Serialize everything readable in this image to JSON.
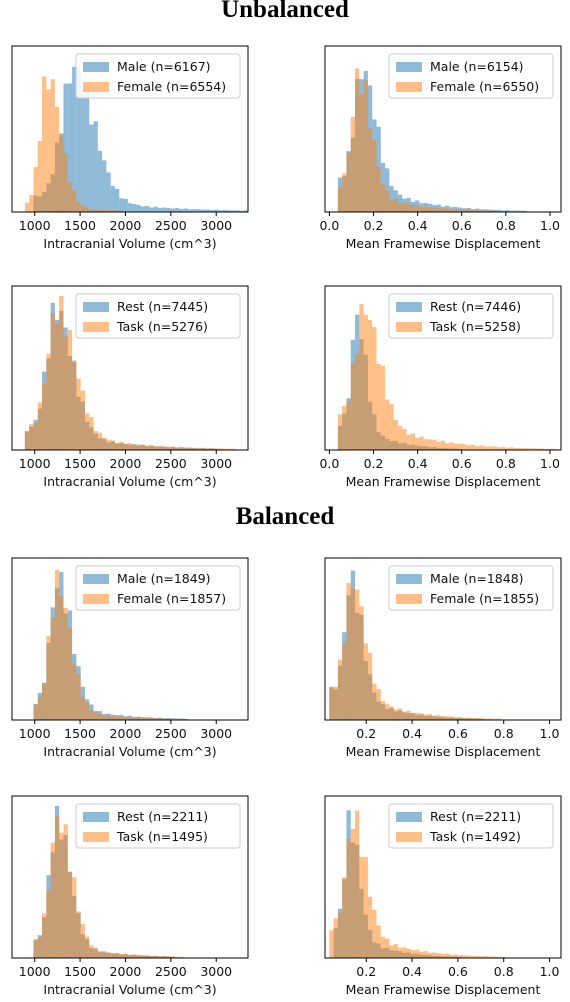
{
  "section_titles": [
    "Unbalanced",
    "Balanced"
  ],
  "colors": {
    "blue": "#1f77b4",
    "orange": "#ff7f0e",
    "bar_alpha": 0.5
  },
  "chart_data": [
    {
      "type": "histogram",
      "section": "Unbalanced",
      "variable": "volume",
      "xlabel": "Intracranial Volume (cm^3)",
      "xlim": [
        750,
        3350
      ],
      "ticks": [
        1000,
        1500,
        2000,
        2500,
        3000
      ],
      "legend_position": "top-right",
      "series": [
        {
          "name": "Male (n=6167)",
          "color": "#1f77b4",
          "center": 1430,
          "spread": 165,
          "tail": 0.11
        },
        {
          "name": "Female (n=6554)",
          "color": "#ff7f0e",
          "center": 1145,
          "spread": 105,
          "tail": 0.05
        }
      ]
    },
    {
      "type": "histogram",
      "section": "Unbalanced",
      "variable": "fd",
      "xlabel": "Mean Framewise Displacement",
      "xlim": [
        -0.02,
        1.05
      ],
      "ticks": [
        0.0,
        0.2,
        0.4,
        0.6,
        0.8,
        1.0
      ],
      "legend_position": "top-right",
      "series": [
        {
          "name": "Male (n=6154)",
          "color": "#1f77b4",
          "center": 0.15,
          "spread": 0.045,
          "tail": 0.28
        },
        {
          "name": "Female (n=6550)",
          "color": "#ff7f0e",
          "center": 0.135,
          "spread": 0.04,
          "tail": 0.22
        }
      ]
    },
    {
      "type": "histogram",
      "section": "Unbalanced",
      "variable": "volume",
      "xlabel": "Intracranial Volume (cm^3)",
      "xlim": [
        750,
        3350
      ],
      "ticks": [
        1000,
        1500,
        2000,
        2500,
        3000
      ],
      "legend_position": "top-right",
      "series": [
        {
          "name": "Rest (n=7445)",
          "color": "#1f77b4",
          "center": 1240,
          "spread": 130,
          "tail": 0.16
        },
        {
          "name": "Task (n=5276)",
          "color": "#ff7f0e",
          "center": 1255,
          "spread": 140,
          "tail": 0.16
        }
      ]
    },
    {
      "type": "histogram",
      "section": "Unbalanced",
      "variable": "fd",
      "xlabel": "Mean Framewise Displacement",
      "xlim": [
        -0.02,
        1.05
      ],
      "ticks": [
        0.0,
        0.2,
        0.4,
        0.6,
        0.8,
        1.0
      ],
      "legend_position": "top-right",
      "series": [
        {
          "name": "Rest (n=7446)",
          "color": "#1f77b4",
          "center": 0.125,
          "spread": 0.03,
          "tail": 0.25
        },
        {
          "name": "Task (n=5258)",
          "color": "#ff7f0e",
          "center": 0.16,
          "spread": 0.05,
          "tail": 0.32
        }
      ]
    },
    {
      "type": "histogram",
      "section": "Balanced",
      "variable": "volume",
      "xlabel": "Intracranial Volume (cm^3)",
      "xlim": [
        750,
        3350
      ],
      "ticks": [
        1000,
        1500,
        2000,
        2500,
        3000
      ],
      "legend_position": "top-right",
      "series": [
        {
          "name": "Male (n=1849)",
          "color": "#1f77b4",
          "center": 1260,
          "spread": 110,
          "tail": 0.13
        },
        {
          "name": "Female (n=1857)",
          "color": "#ff7f0e",
          "center": 1250,
          "spread": 105,
          "tail": 0.11
        }
      ]
    },
    {
      "type": "histogram",
      "section": "Balanced",
      "variable": "fd",
      "xlabel": "Mean Framewise Displacement",
      "xlim": [
        0.02,
        1.05
      ],
      "ticks": [
        0.2,
        0.4,
        0.6,
        0.8,
        1.0
      ],
      "legend_position": "top-right",
      "series": [
        {
          "name": "Male (n=1848)",
          "color": "#1f77b4",
          "center": 0.135,
          "spread": 0.035,
          "tail": 0.26
        },
        {
          "name": "Female (n=1855)",
          "color": "#ff7f0e",
          "center": 0.14,
          "spread": 0.04,
          "tail": 0.26
        }
      ]
    },
    {
      "type": "histogram",
      "section": "Balanced",
      "variable": "volume",
      "xlabel": "Intracranial Volume (cm^3)",
      "xlim": [
        750,
        3350
      ],
      "ticks": [
        1000,
        1500,
        2000,
        2500,
        3000
      ],
      "legend_position": "top-right",
      "series": [
        {
          "name": "Rest (n=2211)",
          "color": "#1f77b4",
          "center": 1250,
          "spread": 105,
          "tail": 0.12
        },
        {
          "name": "Task (n=1495)",
          "color": "#ff7f0e",
          "center": 1260,
          "spread": 110,
          "tail": 0.12
        }
      ]
    },
    {
      "type": "histogram",
      "section": "Balanced",
      "variable": "fd",
      "xlabel": "Mean Framewise Displacement",
      "xlim": [
        0.02,
        1.05
      ],
      "ticks": [
        0.2,
        0.4,
        0.6,
        0.8,
        1.0
      ],
      "legend_position": "top-right",
      "series": [
        {
          "name": "Rest (n=2211)",
          "color": "#1f77b4",
          "center": 0.13,
          "spread": 0.03,
          "tail": 0.25
        },
        {
          "name": "Task (n=1492)",
          "color": "#ff7f0e",
          "center": 0.145,
          "spread": 0.04,
          "tail": 0.28
        }
      ]
    }
  ]
}
